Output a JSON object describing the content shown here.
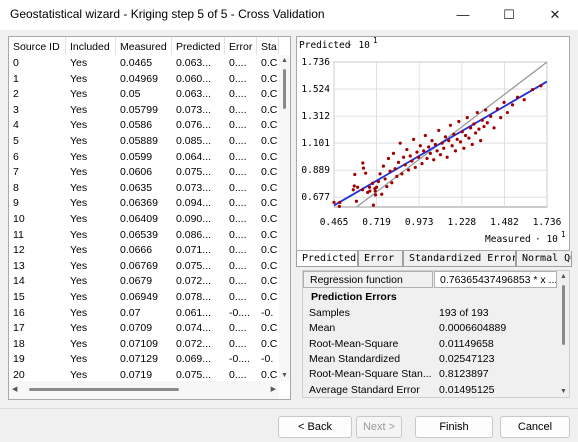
{
  "window": {
    "title": "Geostatistical wizard - Kriging step 5 of 5 - Cross Validation",
    "minimize_glyph": "—",
    "maximize_glyph": "☐",
    "close_glyph": "✕"
  },
  "table": {
    "columns": [
      "Source ID",
      "Included",
      "Measured",
      "Predicted",
      "Error",
      "Sta"
    ],
    "rows": [
      [
        "0",
        "Yes",
        "0.0465",
        "0.063...",
        "0....",
        "0.C"
      ],
      [
        "1",
        "Yes",
        "0.04969",
        "0.060...",
        "0....",
        "0.C"
      ],
      [
        "2",
        "Yes",
        "0.05",
        "0.063...",
        "0....",
        "0.C"
      ],
      [
        "3",
        "Yes",
        "0.05799",
        "0.073...",
        "0....",
        "0.C"
      ],
      [
        "4",
        "Yes",
        "0.0586",
        "0.076...",
        "0....",
        "0.C"
      ],
      [
        "5",
        "Yes",
        "0.05889",
        "0.085...",
        "0....",
        "0.C"
      ],
      [
        "6",
        "Yes",
        "0.0599",
        "0.064...",
        "0....",
        "0.C"
      ],
      [
        "7",
        "Yes",
        "0.0606",
        "0.075...",
        "0....",
        "0.C"
      ],
      [
        "8",
        "Yes",
        "0.0635",
        "0.073...",
        "0....",
        "0.C"
      ],
      [
        "9",
        "Yes",
        "0.06369",
        "0.094...",
        "0....",
        "0.C"
      ],
      [
        "10",
        "Yes",
        "0.06409",
        "0.090...",
        "0....",
        "0.C"
      ],
      [
        "11",
        "Yes",
        "0.06539",
        "0.086...",
        "0....",
        "0.C"
      ],
      [
        "12",
        "Yes",
        "0.0666",
        "0.071...",
        "0....",
        "0.C"
      ],
      [
        "13",
        "Yes",
        "0.06769",
        "0.075...",
        "0....",
        "0.C"
      ],
      [
        "14",
        "Yes",
        "0.0679",
        "0.072...",
        "0....",
        "0.C"
      ],
      [
        "15",
        "Yes",
        "0.06949",
        "0.078...",
        "0....",
        "0.C"
      ],
      [
        "16",
        "Yes",
        "0.07",
        "0.061...",
        "-0....",
        "-0."
      ],
      [
        "17",
        "Yes",
        "0.0709",
        "0.074...",
        "0....",
        "0.C"
      ],
      [
        "18",
        "Yes",
        "0.07109",
        "0.072...",
        "0....",
        "0.C"
      ],
      [
        "19",
        "Yes",
        "0.07129",
        "0.069...",
        "-0....",
        "-0."
      ],
      [
        "20",
        "Yes",
        "0.0719",
        "0.075...",
        "0....",
        "0.C"
      ]
    ]
  },
  "chart": {
    "y_title": "Predicted",
    "y_exponent_label": "· 10",
    "y_exponent": "1",
    "x_title": "Measured",
    "x_exponent_label": "· 10",
    "x_exponent": "1",
    "point_color": "#a00000",
    "regression_color": "#1f2fdc",
    "reference_color": "#9a9a9a"
  },
  "chart_data": {
    "type": "scatter",
    "xlabel": "Measured · 10^1",
    "ylabel": "Predicted · 10^1",
    "xlim": [
      0.465,
      1.736
    ],
    "ylim": [
      0.6,
      1.736
    ],
    "x_ticks": [
      "0.465",
      "0.719",
      "0.973",
      "1.228",
      "1.482",
      "1.736"
    ],
    "y_ticks": [
      "0.677",
      "0.889",
      "1.101",
      "1.312",
      "1.524",
      "1.736"
    ],
    "x_tick_values": [
      0.465,
      0.719,
      0.973,
      1.228,
      1.482,
      1.736
    ],
    "y_tick_values": [
      0.677,
      0.889,
      1.101,
      1.312,
      1.524,
      1.736
    ],
    "grid": true,
    "regression_line": [
      [
        0.465,
        0.612
      ],
      [
        1.736,
        1.583
      ]
    ],
    "reference_line": [
      [
        0.465,
        0.465
      ],
      [
        1.736,
        1.736
      ]
    ],
    "points": [
      [
        0.465,
        0.636
      ],
      [
        0.497,
        0.605
      ],
      [
        0.5,
        0.636
      ],
      [
        0.58,
        0.735
      ],
      [
        0.586,
        0.765
      ],
      [
        0.589,
        0.855
      ],
      [
        0.599,
        0.645
      ],
      [
        0.606,
        0.755
      ],
      [
        0.635,
        0.735
      ],
      [
        0.637,
        0.945
      ],
      [
        0.641,
        0.905
      ],
      [
        0.654,
        0.865
      ],
      [
        0.666,
        0.715
      ],
      [
        0.677,
        0.755
      ],
      [
        0.679,
        0.725
      ],
      [
        0.695,
        0.785
      ],
      [
        0.7,
        0.615
      ],
      [
        0.709,
        0.745
      ],
      [
        0.711,
        0.725
      ],
      [
        0.713,
        0.695
      ],
      [
        0.719,
        0.755
      ],
      [
        0.73,
        0.8
      ],
      [
        0.74,
        0.86
      ],
      [
        0.75,
        0.7
      ],
      [
        0.76,
        0.92
      ],
      [
        0.77,
        0.82
      ],
      [
        0.78,
        0.76
      ],
      [
        0.79,
        0.98
      ],
      [
        0.8,
        0.88
      ],
      [
        0.81,
        0.79
      ],
      [
        0.82,
        1.02
      ],
      [
        0.83,
        0.9
      ],
      [
        0.84,
        0.84
      ],
      [
        0.85,
        0.95
      ],
      [
        0.86,
        1.1
      ],
      [
        0.87,
        0.86
      ],
      [
        0.88,
        0.99
      ],
      [
        0.89,
        0.93
      ],
      [
        0.9,
        1.05
      ],
      [
        0.91,
        0.89
      ],
      [
        0.92,
        1.0
      ],
      [
        0.93,
        0.96
      ],
      [
        0.94,
        1.13
      ],
      [
        0.95,
        0.91
      ],
      [
        0.96,
        1.03
      ],
      [
        0.97,
        0.99
      ],
      [
        0.98,
        1.08
      ],
      [
        0.99,
        0.94
      ],
      [
        1.0,
        1.04
      ],
      [
        1.01,
        1.16
      ],
      [
        1.02,
        0.98
      ],
      [
        1.03,
        1.07
      ],
      [
        1.04,
        1.02
      ],
      [
        1.05,
        1.12
      ],
      [
        1.06,
        0.97
      ],
      [
        1.07,
        1.09
      ],
      [
        1.08,
        1.04
      ],
      [
        1.09,
        1.2
      ],
      [
        1.1,
        1.01
      ],
      [
        1.11,
        1.1
      ],
      [
        1.12,
        1.06
      ],
      [
        1.13,
        1.15
      ],
      [
        1.14,
        0.99
      ],
      [
        1.15,
        1.12
      ],
      [
        1.16,
        1.24
      ],
      [
        1.17,
        1.08
      ],
      [
        1.18,
        1.17
      ],
      [
        1.19,
        1.04
      ],
      [
        1.2,
        1.13
      ],
      [
        1.21,
        1.27
      ],
      [
        1.22,
        1.11
      ],
      [
        1.23,
        1.19
      ],
      [
        1.24,
        1.06
      ],
      [
        1.25,
        1.16
      ],
      [
        1.26,
        1.3
      ],
      [
        1.27,
        1.14
      ],
      [
        1.28,
        1.22
      ],
      [
        1.29,
        1.09
      ],
      [
        1.3,
        1.25
      ],
      [
        1.31,
        1.18
      ],
      [
        1.32,
        1.34
      ],
      [
        1.33,
        1.21
      ],
      [
        1.34,
        1.12
      ],
      [
        1.35,
        1.28
      ],
      [
        1.36,
        1.23
      ],
      [
        1.37,
        1.36
      ],
      [
        1.38,
        1.26
      ],
      [
        1.4,
        1.31
      ],
      [
        1.42,
        1.22
      ],
      [
        1.44,
        1.37
      ],
      [
        1.46,
        1.3
      ],
      [
        1.48,
        1.42
      ],
      [
        1.5,
        1.34
      ],
      [
        1.53,
        1.4
      ],
      [
        1.56,
        1.46
      ],
      [
        1.6,
        1.44
      ],
      [
        1.65,
        1.52
      ],
      [
        1.7,
        1.55
      ]
    ]
  },
  "tabs": [
    "Predicted",
    "Error",
    "Standardized Error",
    "Normal QQ"
  ],
  "stats": {
    "regression_key": "Regression function",
    "regression_value": "0.76365437496853 * x ...",
    "section_title": "Prediction Errors",
    "rows": [
      [
        "Samples",
        "193 of 193"
      ],
      [
        "Mean",
        "0.0006604889"
      ],
      [
        "Root-Mean-Square",
        "0.01149658"
      ],
      [
        "Mean Standardized",
        "0.02547123"
      ],
      [
        "Root-Mean-Square Stan...",
        "0.8123897"
      ],
      [
        "Average Standard Error",
        "0.01495125"
      ]
    ]
  },
  "buttons": {
    "back": "< Back",
    "next": "Next >",
    "finish": "Finish",
    "cancel": "Cancel"
  }
}
